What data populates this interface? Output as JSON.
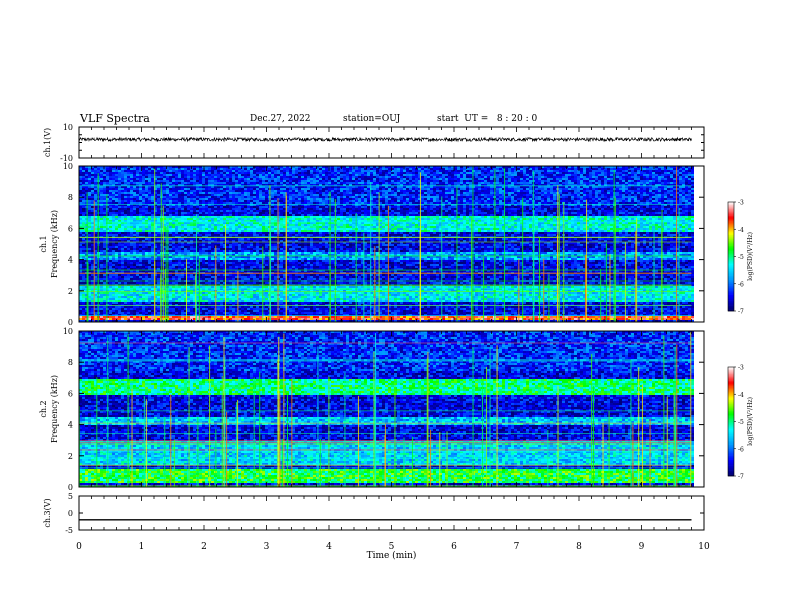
{
  "header": {
    "title": "VLF Spectra",
    "date": "Dec.27, 2022",
    "station": "station=OUJ",
    "start_ut": "start  UT =   8 : 20 : 0"
  },
  "chart_data": [
    {
      "type": "line",
      "panel": "ch1-waveform",
      "ylabel": "ch.1(V)",
      "ylim": [
        -10,
        10
      ],
      "yticks": [
        "10",
        "-10"
      ],
      "x_range": [
        0,
        10
      ],
      "trace_description": "dense noisy black waveform centered near +2 V, amplitude about ±1 V, ending at 9.8 min",
      "trace_center": 2,
      "trace_end": 9.8
    },
    {
      "type": "heatmap",
      "panel": "ch1-spectrogram",
      "ylabel": "ch.1\nFrequency  (kHz)",
      "ylim": [
        0,
        10
      ],
      "yticks": [
        "0",
        "2",
        "4",
        "6",
        "8",
        "10"
      ],
      "x_range": [
        0,
        10
      ],
      "data_end": 9.8,
      "bands": [
        {
          "freq_range": [
            5.8,
            6.9
          ],
          "level": -5.3
        },
        {
          "freq_range": [
            4.0,
            4.6
          ],
          "level": -5.8
        },
        {
          "freq_range": [
            1.4,
            2.4
          ],
          "level": -5.4
        },
        {
          "freq_range": [
            0.2,
            0.5
          ],
          "level": -3.6
        }
      ]
    },
    {
      "type": "heatmap",
      "panel": "ch2-spectrogram",
      "ylabel": "ch.2\nFrequency  (kHz)",
      "ylim": [
        0,
        10
      ],
      "yticks": [
        "0",
        "2",
        "4",
        "6",
        "8",
        "10"
      ],
      "x_range": [
        0,
        10
      ],
      "data_end": 9.8,
      "bands": [
        {
          "freq_range": [
            6.0,
            7.0
          ],
          "level": -5.0
        },
        {
          "freq_range": [
            4.0,
            4.5
          ],
          "level": -5.6
        },
        {
          "freq_range": [
            1.5,
            3.0
          ],
          "level": -5.5
        },
        {
          "freq_range": [
            0.3,
            1.2
          ],
          "level": -4.8
        }
      ]
    },
    {
      "type": "line",
      "panel": "ch3-waveform",
      "ylabel": "ch.3(V)",
      "ylim": [
        -5,
        5
      ],
      "yticks": [
        "5",
        "0",
        "-5"
      ],
      "x_range": [
        0,
        10
      ],
      "trace_description": "flat black line at about -2 V ending at 9.8 min",
      "trace_value": -2,
      "trace_end": 9.8,
      "xlabel": "Time  (min)",
      "xticks": [
        "0",
        "1",
        "2",
        "3",
        "4",
        "5",
        "6",
        "7",
        "8",
        "9",
        "10"
      ]
    }
  ],
  "colorbars": [
    {
      "label": "log(PSD)(V²/Hz)",
      "ticks": [
        "-3",
        "-4",
        "-5",
        "-6",
        "-7"
      ],
      "range": [
        -7,
        -3
      ]
    },
    {
      "label": "log(PSD)(V²/Hz)",
      "ticks": [
        "-3",
        "-4",
        "-5",
        "-6",
        "-7"
      ],
      "range": [
        -7,
        -3
      ]
    }
  ],
  "colors": {
    "axis": "#000000",
    "trace": "#000000",
    "colormap": [
      "#000064",
      "#0000ff",
      "#0096ff",
      "#00ffff",
      "#00ff00",
      "#ffff00",
      "#ff0000",
      "#ffffff"
    ]
  }
}
